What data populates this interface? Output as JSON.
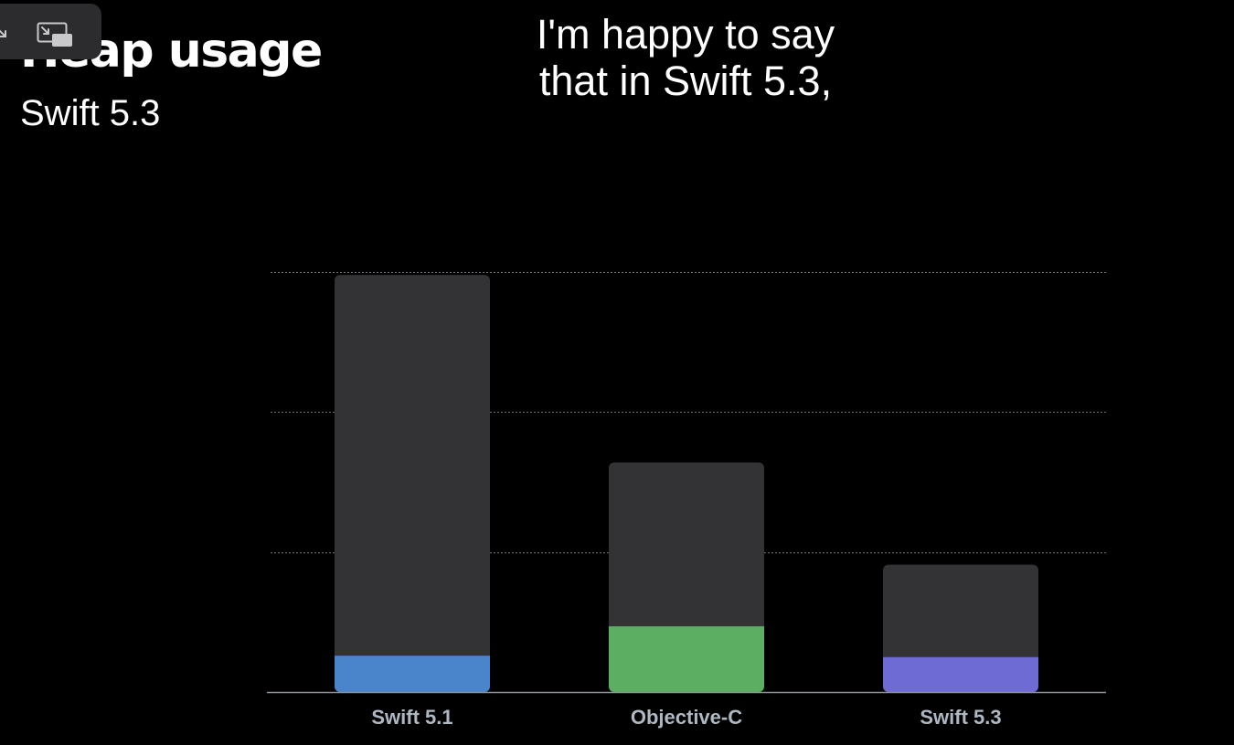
{
  "overlay": {
    "caption_line1": "I'm happy to say",
    "caption_line2": "that in Swift 5.3,"
  },
  "icons": {
    "arrow": "arrow-down-right-icon",
    "pip": "picture-in-picture-exit-icon"
  },
  "chart_data": {
    "type": "bar",
    "stacked": true,
    "title": "Heap usage",
    "subtitle": "Swift 5.3",
    "xlabel": "",
    "ylabel": "",
    "categories": [
      "Swift 5.1",
      "Objective-C",
      "Swift 5.3"
    ],
    "series": [
      {
        "values": [
          0.26,
          0.47,
          0.25
        ],
        "colors": [
          "#4a84cb",
          "#5bae62",
          "#6f6bd4"
        ]
      },
      {
        "values": [
          2.72,
          1.17,
          0.66
        ],
        "colors": [
          "#333335",
          "#333335",
          "#333335"
        ]
      }
    ],
    "ylim": [
      0,
      3
    ],
    "gridlines": [
      1,
      2,
      3
    ],
    "grid": true,
    "legend": "none"
  }
}
